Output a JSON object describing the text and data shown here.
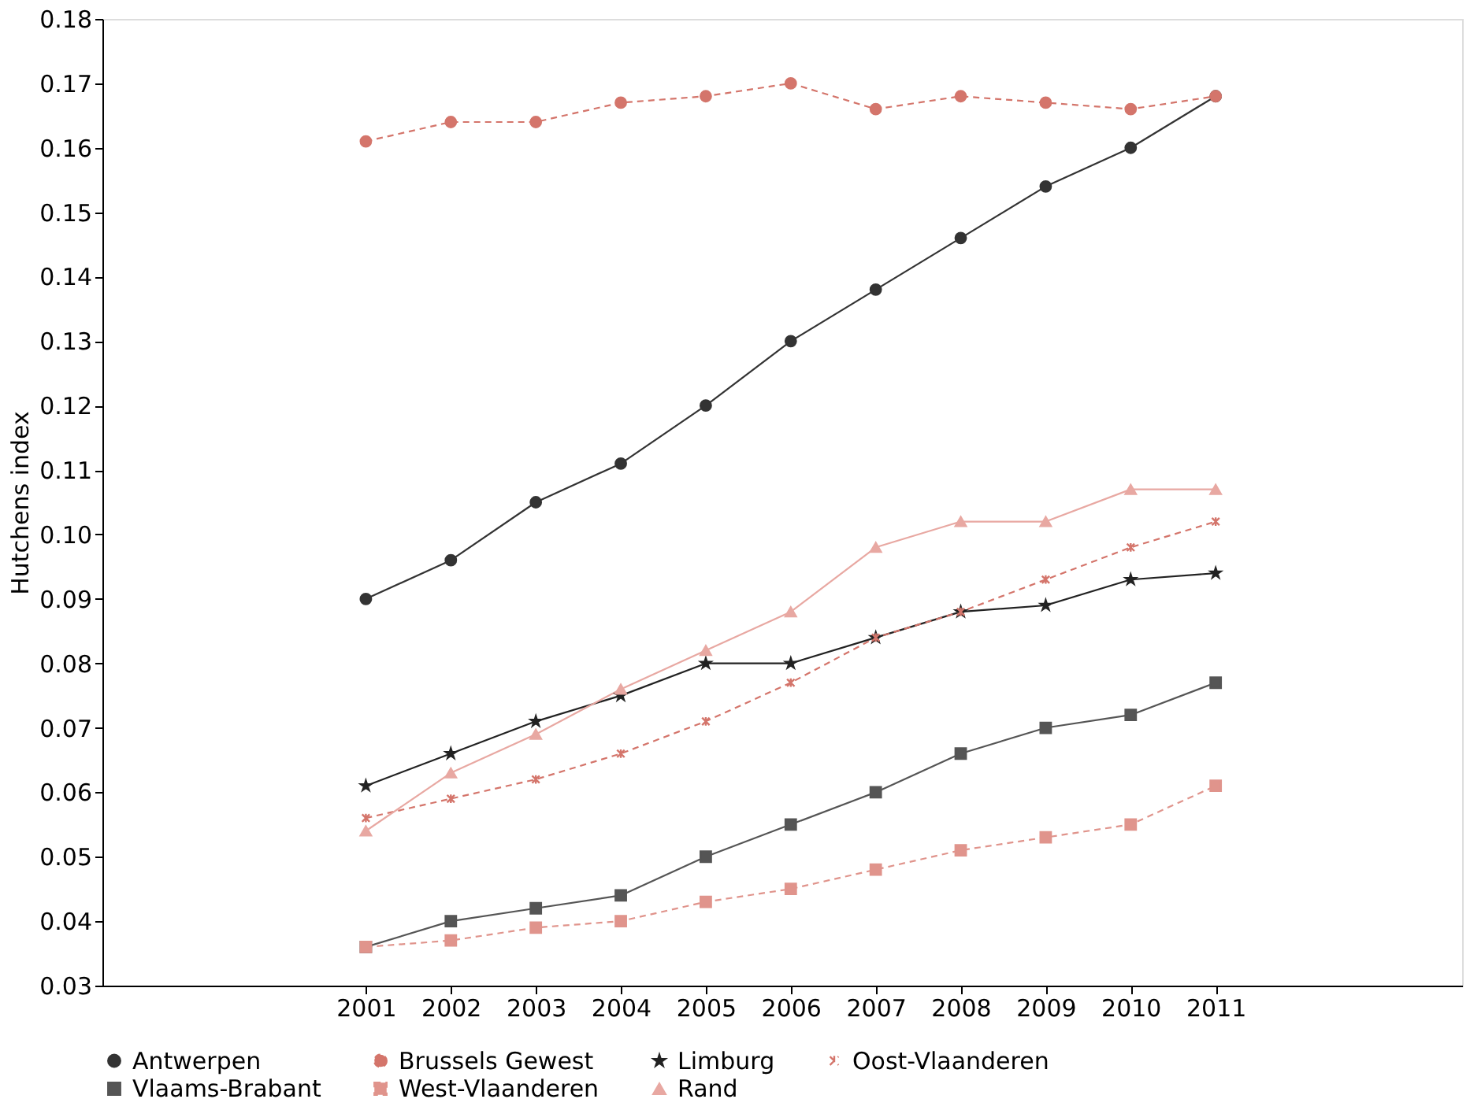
{
  "chart_data": {
    "type": "line",
    "ylabel": "Hutchens index",
    "x": [
      2001,
      2002,
      2003,
      2004,
      2005,
      2006,
      2007,
      2008,
      2009,
      2010,
      2011
    ],
    "xlim": [
      1997.9,
      2013.9
    ],
    "xticks": [
      2001,
      2002,
      2003,
      2004,
      2005,
      2006,
      2007,
      2008,
      2009,
      2010,
      2011
    ],
    "ylim": [
      0.03,
      0.18
    ],
    "yticks": [
      0.03,
      0.04,
      0.05,
      0.06,
      0.07,
      0.08,
      0.09,
      {
        "value": 0.1,
        "label": "0.10"
      },
      0.11,
      0.12,
      0.13,
      0.14,
      0.15,
      0.16,
      0.17,
      0.18
    ],
    "grid": false,
    "legend": "bottom",
    "series": [
      {
        "name": "Antwerpen",
        "color": "#333333",
        "marker": "circle",
        "line_style": "solid",
        "values": [
          0.09,
          0.096,
          0.105,
          0.111,
          0.12,
          0.13,
          0.138,
          0.146,
          0.154,
          0.16,
          0.168
        ]
      },
      {
        "name": "Brussels Gewest",
        "color": "#d4756b",
        "marker": "circle",
        "line_style": "dashed",
        "values": [
          0.161,
          0.164,
          0.164,
          0.167,
          0.168,
          0.17,
          0.166,
          0.168,
          0.167,
          0.166,
          0.168
        ]
      },
      {
        "name": "Limburg",
        "color": "#222222",
        "marker": "star",
        "line_style": "solid",
        "values": [
          0.061,
          0.066,
          0.071,
          0.075,
          0.08,
          0.08,
          0.084,
          0.088,
          0.089,
          0.093,
          0.094
        ]
      },
      {
        "name": "Oost-Vlaanderen",
        "color": "#d4756b",
        "marker": "cross",
        "line_style": "dashed",
        "values": [
          0.056,
          0.059,
          0.062,
          0.066,
          0.071,
          0.077,
          0.084,
          0.088,
          0.093,
          0.098,
          0.102
        ]
      },
      {
        "name": "Vlaams-Brabant",
        "color": "#555555",
        "marker": "square",
        "line_style": "solid",
        "values": [
          0.036,
          0.04,
          0.042,
          0.044,
          0.05,
          0.055,
          0.06,
          0.066,
          0.07,
          0.072,
          0.077
        ]
      },
      {
        "name": "West-Vlaanderen",
        "color": "#e0948c",
        "marker": "square",
        "line_style": "dashed",
        "values": [
          0.036,
          0.037,
          0.039,
          0.04,
          0.043,
          0.045,
          0.048,
          0.051,
          0.053,
          0.055,
          0.061
        ]
      },
      {
        "name": "Rand",
        "color": "#e8a8a2",
        "marker": "triangle",
        "line_style": "solid",
        "values": [
          0.054,
          0.063,
          0.069,
          0.076,
          0.082,
          0.088,
          0.098,
          0.102,
          0.102,
          0.107,
          0.107
        ]
      }
    ]
  }
}
